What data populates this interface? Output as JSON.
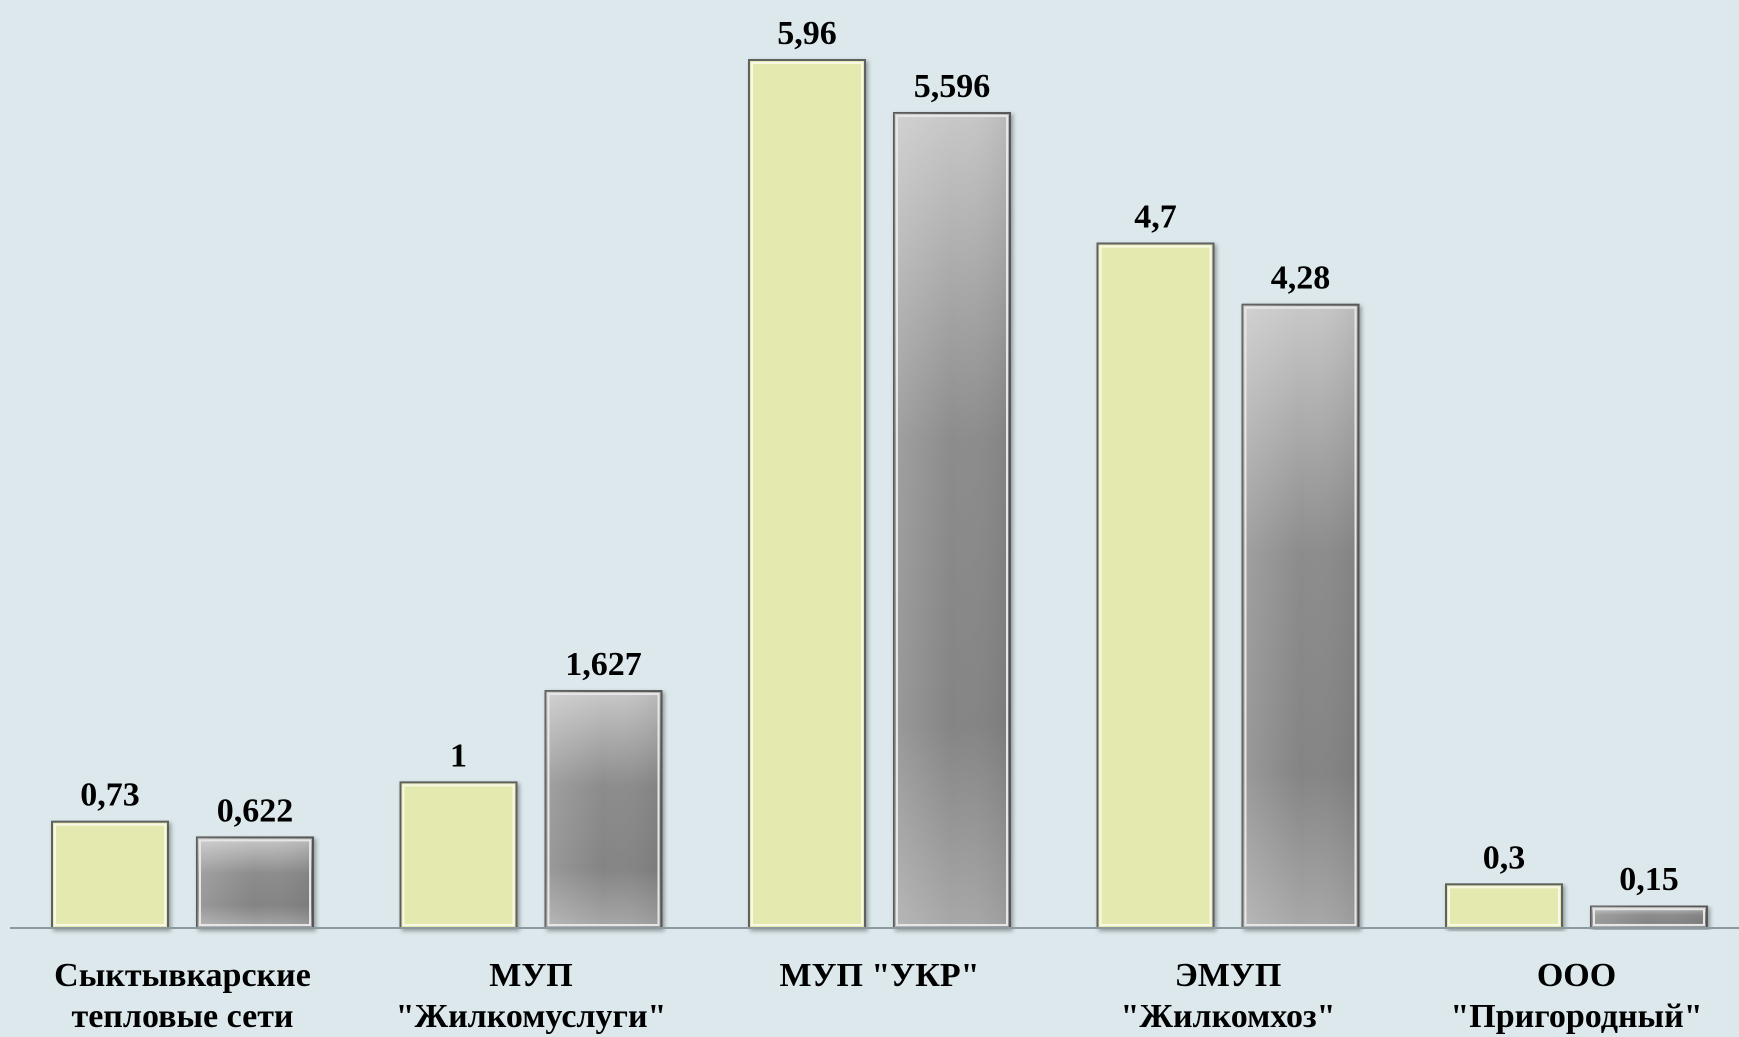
{
  "chart_data": {
    "type": "bar",
    "categories": [
      [
        "Сыктывкарские",
        "тепловые сети"
      ],
      [
        "МУП",
        "\"Жилкомуслуги\""
      ],
      [
        "МУП \"УКР\""
      ],
      [
        "ЭМУП",
        "\"Жилкомхоз\""
      ],
      [
        "ООО",
        "\"Пригородный\""
      ]
    ],
    "series": [
      {
        "values": [
          0.73,
          1,
          5.96,
          4.7,
          0.3
        ],
        "labels": [
          "0,73",
          "1",
          "5,96",
          "4,7",
          "0,3"
        ],
        "color": "#e4e9b0"
      },
      {
        "values": [
          0.622,
          1.627,
          5.596,
          4.28,
          0.15
        ],
        "labels": [
          "0,622",
          "1,627",
          "5,596",
          "4,28",
          "0,15"
        ],
        "color": "#8a8a8a"
      }
    ],
    "ylim": [
      0,
      6.3
    ],
    "grid": false,
    "legend": "none",
    "colors": {
      "background": "#dce8ec",
      "axis": "#8c9aa0",
      "series1_border": "#5e6060",
      "series2_light": "#c6c6c6",
      "series2_dark": "#848484"
    }
  }
}
